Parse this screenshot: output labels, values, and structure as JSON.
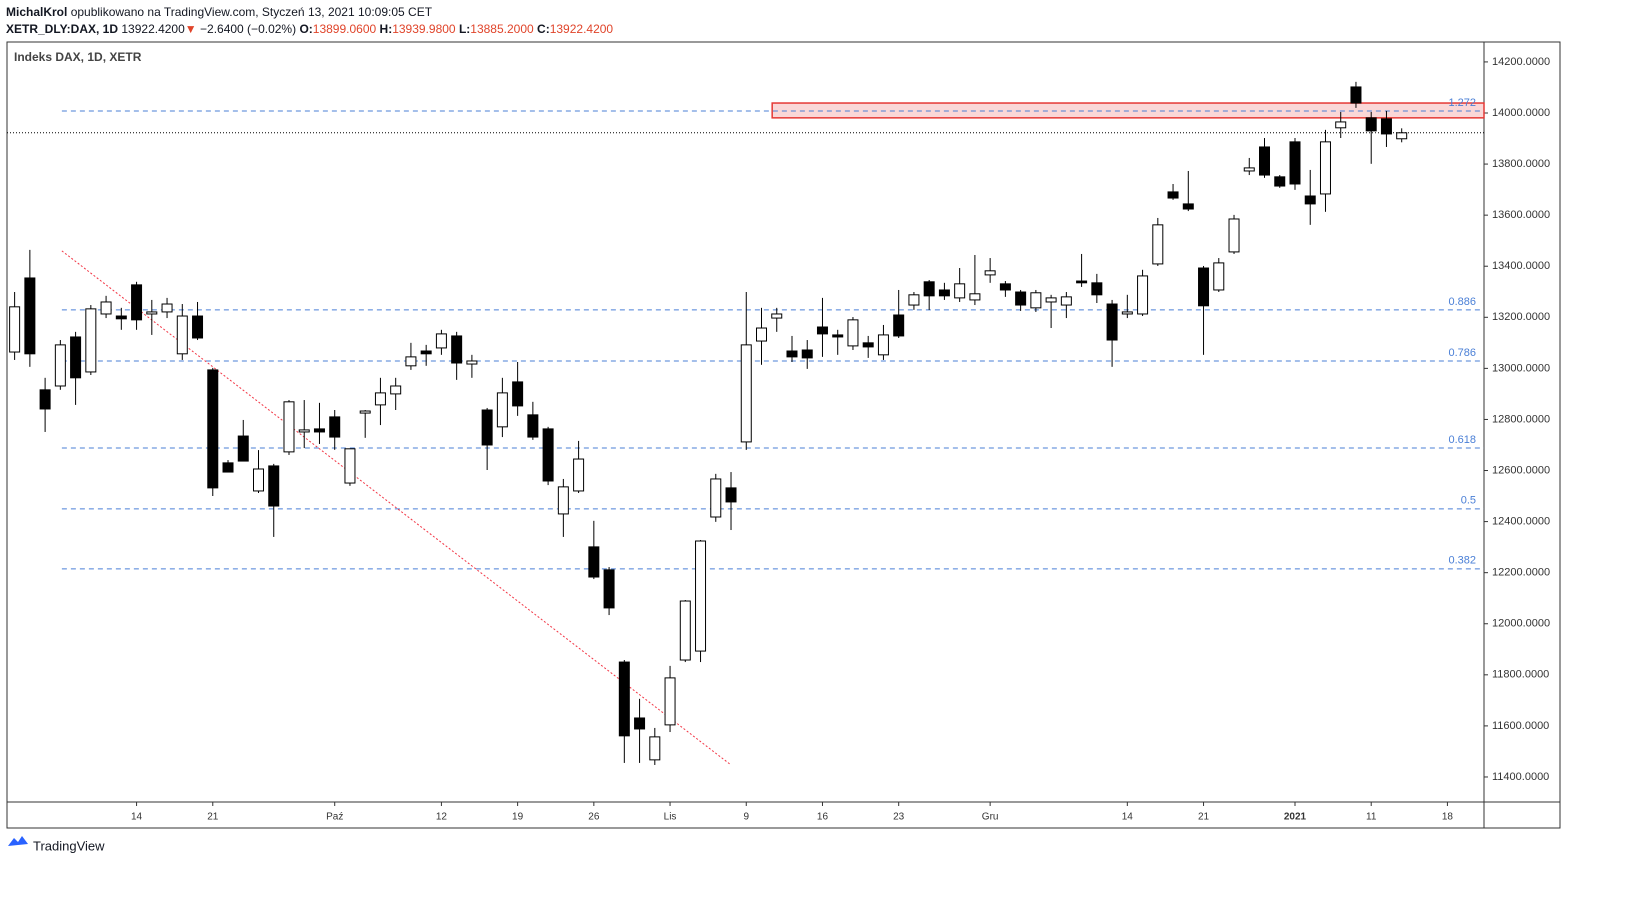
{
  "header": {
    "author": "MichalKrol",
    "published": "opublikowano na TradingView.com, Styczeń 13, 2021 10:09:05 CET",
    "symbol": "XETR_DLY:DAX, 1D",
    "last": "13922.4200",
    "arrow": "▼",
    "change": "−2.6400 (−0.02%)",
    "ohlc": [
      {
        "label": "O:",
        "value": "13899.0600"
      },
      {
        "label": "H:",
        "value": "13939.9800"
      },
      {
        "label": "L:",
        "value": "13885.2000"
      },
      {
        "label": "C:",
        "value": "13922.4200"
      }
    ]
  },
  "chart_data": {
    "type": "candlestick",
    "title": "Indeks DAX, 1D, XETR",
    "open": [
      13064,
      13354,
      12916,
      12931,
      13123,
      12986,
      13213,
      13205,
      13327,
      13213,
      13221,
      13057,
      13205,
      12994,
      12630,
      12735,
      12520,
      12618,
      12673,
      12751,
      12763,
      12810,
      12551,
      12825,
      12857,
      12900,
      13010,
      13068,
      13080,
      13127,
      13017,
      12837,
      12771,
      12947,
      12818,
      12763,
      12430,
      12520,
      12301,
      12211,
      11850,
      11631,
      11467,
      11604,
      11858,
      11893,
      12418,
      12532,
      12712,
      13107,
      13197,
      13068,
      13072,
      13162,
      13131,
      13088,
      13100,
      13053,
      13209,
      13248,
      13339,
      13307,
      13276,
      13268,
      13366,
      13331,
      13299,
      13237,
      13260,
      13248,
      13342,
      13335,
      13252,
      13213,
      13213,
      13409,
      13691,
      13644,
      13393,
      13307,
      13456,
      13773,
      13867,
      13750,
      13887,
      13675,
      13683,
      13942,
      14102,
      13981,
      13977,
      13899.06
    ],
    "high": [
      13299,
      13464,
      12963,
      13111,
      13143,
      13248,
      13284,
      13237,
      13339,
      13268,
      13276,
      13252,
      13260,
      13002,
      12641,
      12798,
      12680,
      12626,
      12876,
      12876,
      12865,
      12837,
      12685,
      12837,
      12963,
      12963,
      13100,
      13092,
      13151,
      13143,
      13053,
      12845,
      12963,
      13025,
      12869,
      12771,
      12567,
      12716,
      12403,
      12222,
      11858,
      11706,
      11592,
      11835,
      12093,
      12328,
      12587,
      12594,
      13299,
      13237,
      13237,
      13127,
      13111,
      13276,
      13151,
      13201,
      13127,
      13170,
      13307,
      13299,
      13346,
      13335,
      13393,
      13444,
      13432,
      13342,
      13307,
      13307,
      13288,
      13299,
      13448,
      13370,
      13268,
      13288,
      13386,
      13589,
      13722,
      13773,
      13401,
      13432,
      13601,
      13824,
      13902,
      13757,
      13902,
      13777,
      13934,
      14004,
      14122,
      14004,
      14008,
      13939.98
    ],
    "low": [
      13033,
      13006,
      12751,
      12916,
      12857,
      12974,
      13197,
      13151,
      13151,
      13131,
      13197,
      13033,
      13111,
      12500,
      12594,
      12637,
      12512,
      12340,
      12661,
      12688,
      12704,
      12681,
      12540,
      12728,
      12778,
      12837,
      12994,
      13010,
      13053,
      12955,
      12963,
      12602,
      12731,
      12814,
      12720,
      12543,
      12340,
      12512,
      12175,
      12034,
      11455,
      11455,
      11447,
      11576,
      11850,
      11850,
      12399,
      12367,
      12681,
      13014,
      13143,
      13025,
      12998,
      13045,
      13053,
      13072,
      13041,
      13033,
      13119,
      13229,
      13229,
      13268,
      13260,
      13248,
      13335,
      13280,
      13225,
      13221,
      13158,
      13197,
      13319,
      13256,
      13006,
      13197,
      13205,
      13401,
      13660,
      13616,
      13053,
      13299,
      13448,
      13757,
      13746,
      13707,
      13699,
      13562,
      13613,
      13902,
      14020,
      13801,
      13867,
      13885.2
    ],
    "close": [
      13241,
      13057,
      12841,
      13092,
      12963,
      13233,
      13260,
      13194,
      13190,
      13221,
      13252,
      13205,
      13119,
      12532,
      12594,
      12637,
      12606,
      12461,
      12869,
      12759,
      12751,
      12731,
      12685,
      12833,
      12904,
      12931,
      13045,
      13057,
      13135,
      13021,
      13029,
      12700,
      12904,
      12853,
      12731,
      12559,
      12536,
      12645,
      12183,
      12062,
      11561,
      11588,
      11557,
      11788,
      12089,
      12324,
      12567,
      12477,
      13092,
      13158,
      13213,
      13045,
      13041,
      13135,
      13123,
      13190,
      13084,
      13131,
      13127,
      13288,
      13284,
      13284,
      13331,
      13292,
      13382,
      13307,
      13248,
      13296,
      13276,
      13280,
      13335,
      13288,
      13111,
      13221,
      13362,
      13562,
      13667,
      13624,
      13245,
      13413,
      13585,
      13785,
      13757,
      13714,
      13722,
      13644,
      13887,
      13965,
      14039,
      13930,
      13918,
      13922.42
    ],
    "up_color": "#ffffff",
    "down_color": "#000000",
    "xlim": [
      -0.5,
      96.4
    ],
    "ylim": [
      11302,
      14278
    ],
    "yticks": [
      {
        "value": 11400,
        "label": "11400.0000"
      },
      {
        "value": 11600,
        "label": "11600.0000"
      },
      {
        "value": 11800,
        "label": "11800.0000"
      },
      {
        "value": 12000,
        "label": "12000.0000"
      },
      {
        "value": 12200,
        "label": "12200.0000"
      },
      {
        "value": 12400,
        "label": "12400.0000"
      },
      {
        "value": 12600,
        "label": "12600.0000"
      },
      {
        "value": 12800,
        "label": "12800.0000"
      },
      {
        "value": 13000,
        "label": "13000.0000"
      },
      {
        "value": 13200,
        "label": "13200.0000"
      },
      {
        "value": 13400,
        "label": "13400.0000"
      },
      {
        "value": 13600,
        "label": "13600.0000"
      },
      {
        "value": 13800,
        "label": "13800.0000"
      },
      {
        "value": 14000,
        "label": "14000.0000"
      },
      {
        "value": 14200,
        "label": "14200.0000"
      }
    ],
    "xticks": [
      {
        "value": 8,
        "label": "14"
      },
      {
        "value": 13,
        "label": "21"
      },
      {
        "value": 21,
        "label": "Paź"
      },
      {
        "value": 28,
        "label": "12"
      },
      {
        "value": 33,
        "label": "19"
      },
      {
        "value": 38,
        "label": "26"
      },
      {
        "value": 43,
        "label": "Lis"
      },
      {
        "value": 48,
        "label": "9"
      },
      {
        "value": 53,
        "label": "16"
      },
      {
        "value": 58,
        "label": "23"
      },
      {
        "value": 64,
        "label": "Gru"
      },
      {
        "value": 73,
        "label": "14"
      },
      {
        "value": 78,
        "label": "21"
      },
      {
        "value": 84,
        "label": "2021"
      },
      {
        "value": 89,
        "label": "11"
      },
      {
        "value": 94,
        "label": "18"
      }
    ],
    "levels": [
      {
        "value": 14008,
        "label": "1.272"
      },
      {
        "value": 13229,
        "label": "0.886"
      },
      {
        "value": 13029,
        "label": "0.786"
      },
      {
        "value": 12688,
        "label": "0.618"
      },
      {
        "value": 12450,
        "label": "0.5"
      },
      {
        "value": 12215,
        "label": "0.382"
      }
    ],
    "level_color": "#4a7fd6",
    "level_start": 3.1,
    "zone": {
      "x0": 49.7,
      "y0": 13981,
      "y1": 14039,
      "color": "#e53935"
    },
    "trendline": {
      "x": [
        3.1,
        47
      ],
      "y": [
        13460,
        11447
      ],
      "color": "#f23645"
    }
  },
  "footer": {
    "brand": "TradingView"
  }
}
